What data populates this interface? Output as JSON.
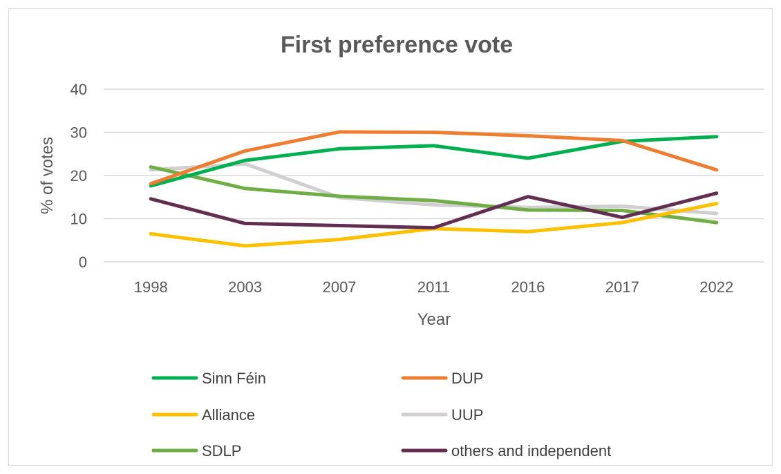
{
  "chart_data": {
    "type": "line",
    "title": "First preference vote",
    "xlabel": "Year",
    "ylabel": "% of votes",
    "categories": [
      "1998",
      "2003",
      "2007",
      "2011",
      "2016",
      "2017",
      "2022"
    ],
    "ylim": [
      0,
      40
    ],
    "yticks": [
      "0",
      "10",
      "20",
      "30",
      "40"
    ],
    "grid": true,
    "legend_position": "bottom",
    "series": [
      {
        "name": "Sinn Féin",
        "color": "#00b050",
        "values": [
          17.6,
          23.5,
          26.2,
          26.9,
          24.0,
          27.9,
          29.0
        ]
      },
      {
        "name": "DUP",
        "color": "#ed7d31",
        "values": [
          18.1,
          25.7,
          30.1,
          30.0,
          29.2,
          28.1,
          21.3
        ]
      },
      {
        "name": "Alliance",
        "color": "#ffc000",
        "values": [
          6.5,
          3.7,
          5.2,
          7.7,
          7.0,
          9.1,
          13.5
        ]
      },
      {
        "name": "UUP",
        "color": "#d0cece",
        "values": [
          21.3,
          22.7,
          14.9,
          13.2,
          12.6,
          12.9,
          11.2
        ]
      },
      {
        "name": "SDLP",
        "color": "#70ad47",
        "values": [
          22.0,
          17.0,
          15.2,
          14.2,
          12.0,
          11.9,
          9.1
        ]
      },
      {
        "name": "others and independent",
        "color": "#622f50",
        "values": [
          14.6,
          8.9,
          8.4,
          7.9,
          15.1,
          10.3,
          15.9
        ]
      }
    ]
  }
}
